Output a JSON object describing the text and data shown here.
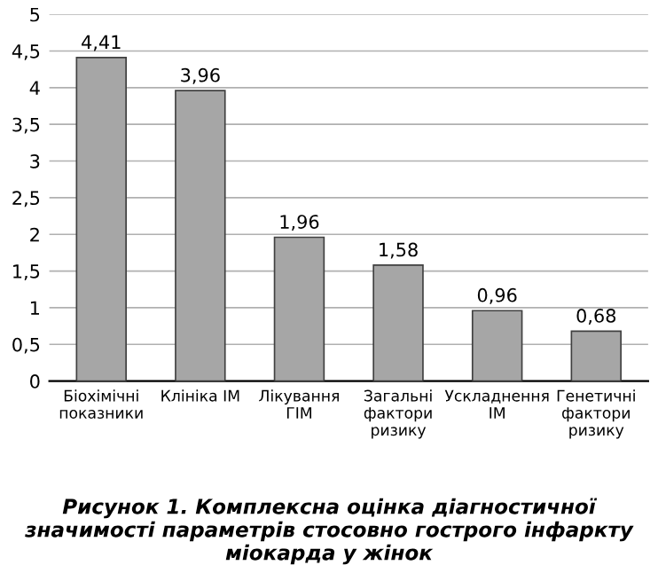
{
  "chart_data": {
    "type": "bar",
    "categories": [
      "Біохімічні\nпоказники",
      "Клініка ІМ",
      "Лікування\nГІМ",
      "Загальні\nфактори\nризику",
      "Ускладнення\nІМ",
      "Генетичні\nфактори\nризику"
    ],
    "values": [
      4.41,
      3.96,
      1.96,
      1.58,
      0.96,
      0.68
    ],
    "value_labels": [
      "4,41",
      "3,96",
      "1,96",
      "1,58",
      "0,96",
      "0,68"
    ],
    "color": "#a6a6a6",
    "ylim": [
      0,
      5
    ],
    "yticks": [
      0,
      {
        "value": 0.5,
        "label": "0,5"
      },
      1,
      {
        "value": 1.5,
        "label": "1,5"
      },
      2,
      {
        "value": 2.5,
        "label": "2,5"
      },
      3,
      {
        "value": 3.5,
        "label": "3,5"
      },
      4,
      {
        "value": 4.5,
        "label": "4,5"
      },
      5
    ],
    "grid": "y",
    "annotations": [
      "Рисунок 1. Комплексна оцінка діагностичної значимості параметрів стосовно гострого інфаркту міокарда у жінок"
    ]
  }
}
